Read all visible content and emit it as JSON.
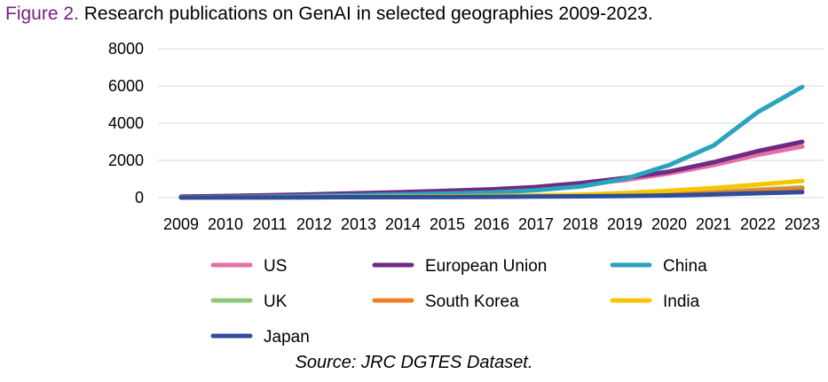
{
  "figure": {
    "label": "Figure 2.",
    "caption": "Research publications on GenAI in selected geographies 2009-2023.",
    "source": "Source: JRC DGTES Dataset."
  },
  "chart_data": {
    "type": "line",
    "title": "Research publications on GenAI in selected geographies 2009-2023.",
    "xlabel": "",
    "ylabel": "",
    "ylim": [
      0,
      8000
    ],
    "yticks": [
      "8000",
      "6000",
      "4000",
      "2000",
      "0"
    ],
    "grid": true,
    "legend_position": "bottom",
    "categories": [
      "2009",
      "2010",
      "2011",
      "2012",
      "2013",
      "2014",
      "2015",
      "2016",
      "2017",
      "2018",
      "2019",
      "2020",
      "2021",
      "2022",
      "2023"
    ],
    "series": [
      {
        "name": "US",
        "color": "#e86fa6",
        "values": [
          50,
          80,
          120,
          160,
          210,
          260,
          320,
          390,
          500,
          700,
          950,
          1300,
          1750,
          2300,
          2750
        ]
      },
      {
        "name": "European Union",
        "color": "#6e2b82",
        "values": [
          50,
          90,
          130,
          180,
          240,
          300,
          370,
          450,
          570,
          780,
          1050,
          1400,
          1900,
          2500,
          3000
        ]
      },
      {
        "name": "China",
        "color": "#2aa3bd",
        "values": [
          20,
          40,
          60,
          90,
          130,
          170,
          220,
          280,
          400,
          600,
          1000,
          1750,
          2800,
          4600,
          5950
        ]
      },
      {
        "name": "UK",
        "color": "#8dc77b",
        "values": [
          10,
          15,
          20,
          30,
          40,
          50,
          60,
          75,
          95,
          120,
          160,
          210,
          300,
          430,
          550
        ]
      },
      {
        "name": "South Korea",
        "color": "#f07e26",
        "values": [
          5,
          10,
          15,
          20,
          25,
          35,
          45,
          55,
          70,
          95,
          130,
          180,
          250,
          380,
          480
        ]
      },
      {
        "name": "India",
        "color": "#f7c600",
        "values": [
          10,
          15,
          20,
          30,
          40,
          55,
          70,
          90,
          120,
          160,
          250,
          370,
          520,
          700,
          900
        ]
      },
      {
        "name": "Japan",
        "color": "#2e4d9b",
        "values": [
          5,
          10,
          15,
          20,
          25,
          30,
          40,
          45,
          55,
          70,
          90,
          120,
          170,
          240,
          300
        ]
      }
    ]
  }
}
